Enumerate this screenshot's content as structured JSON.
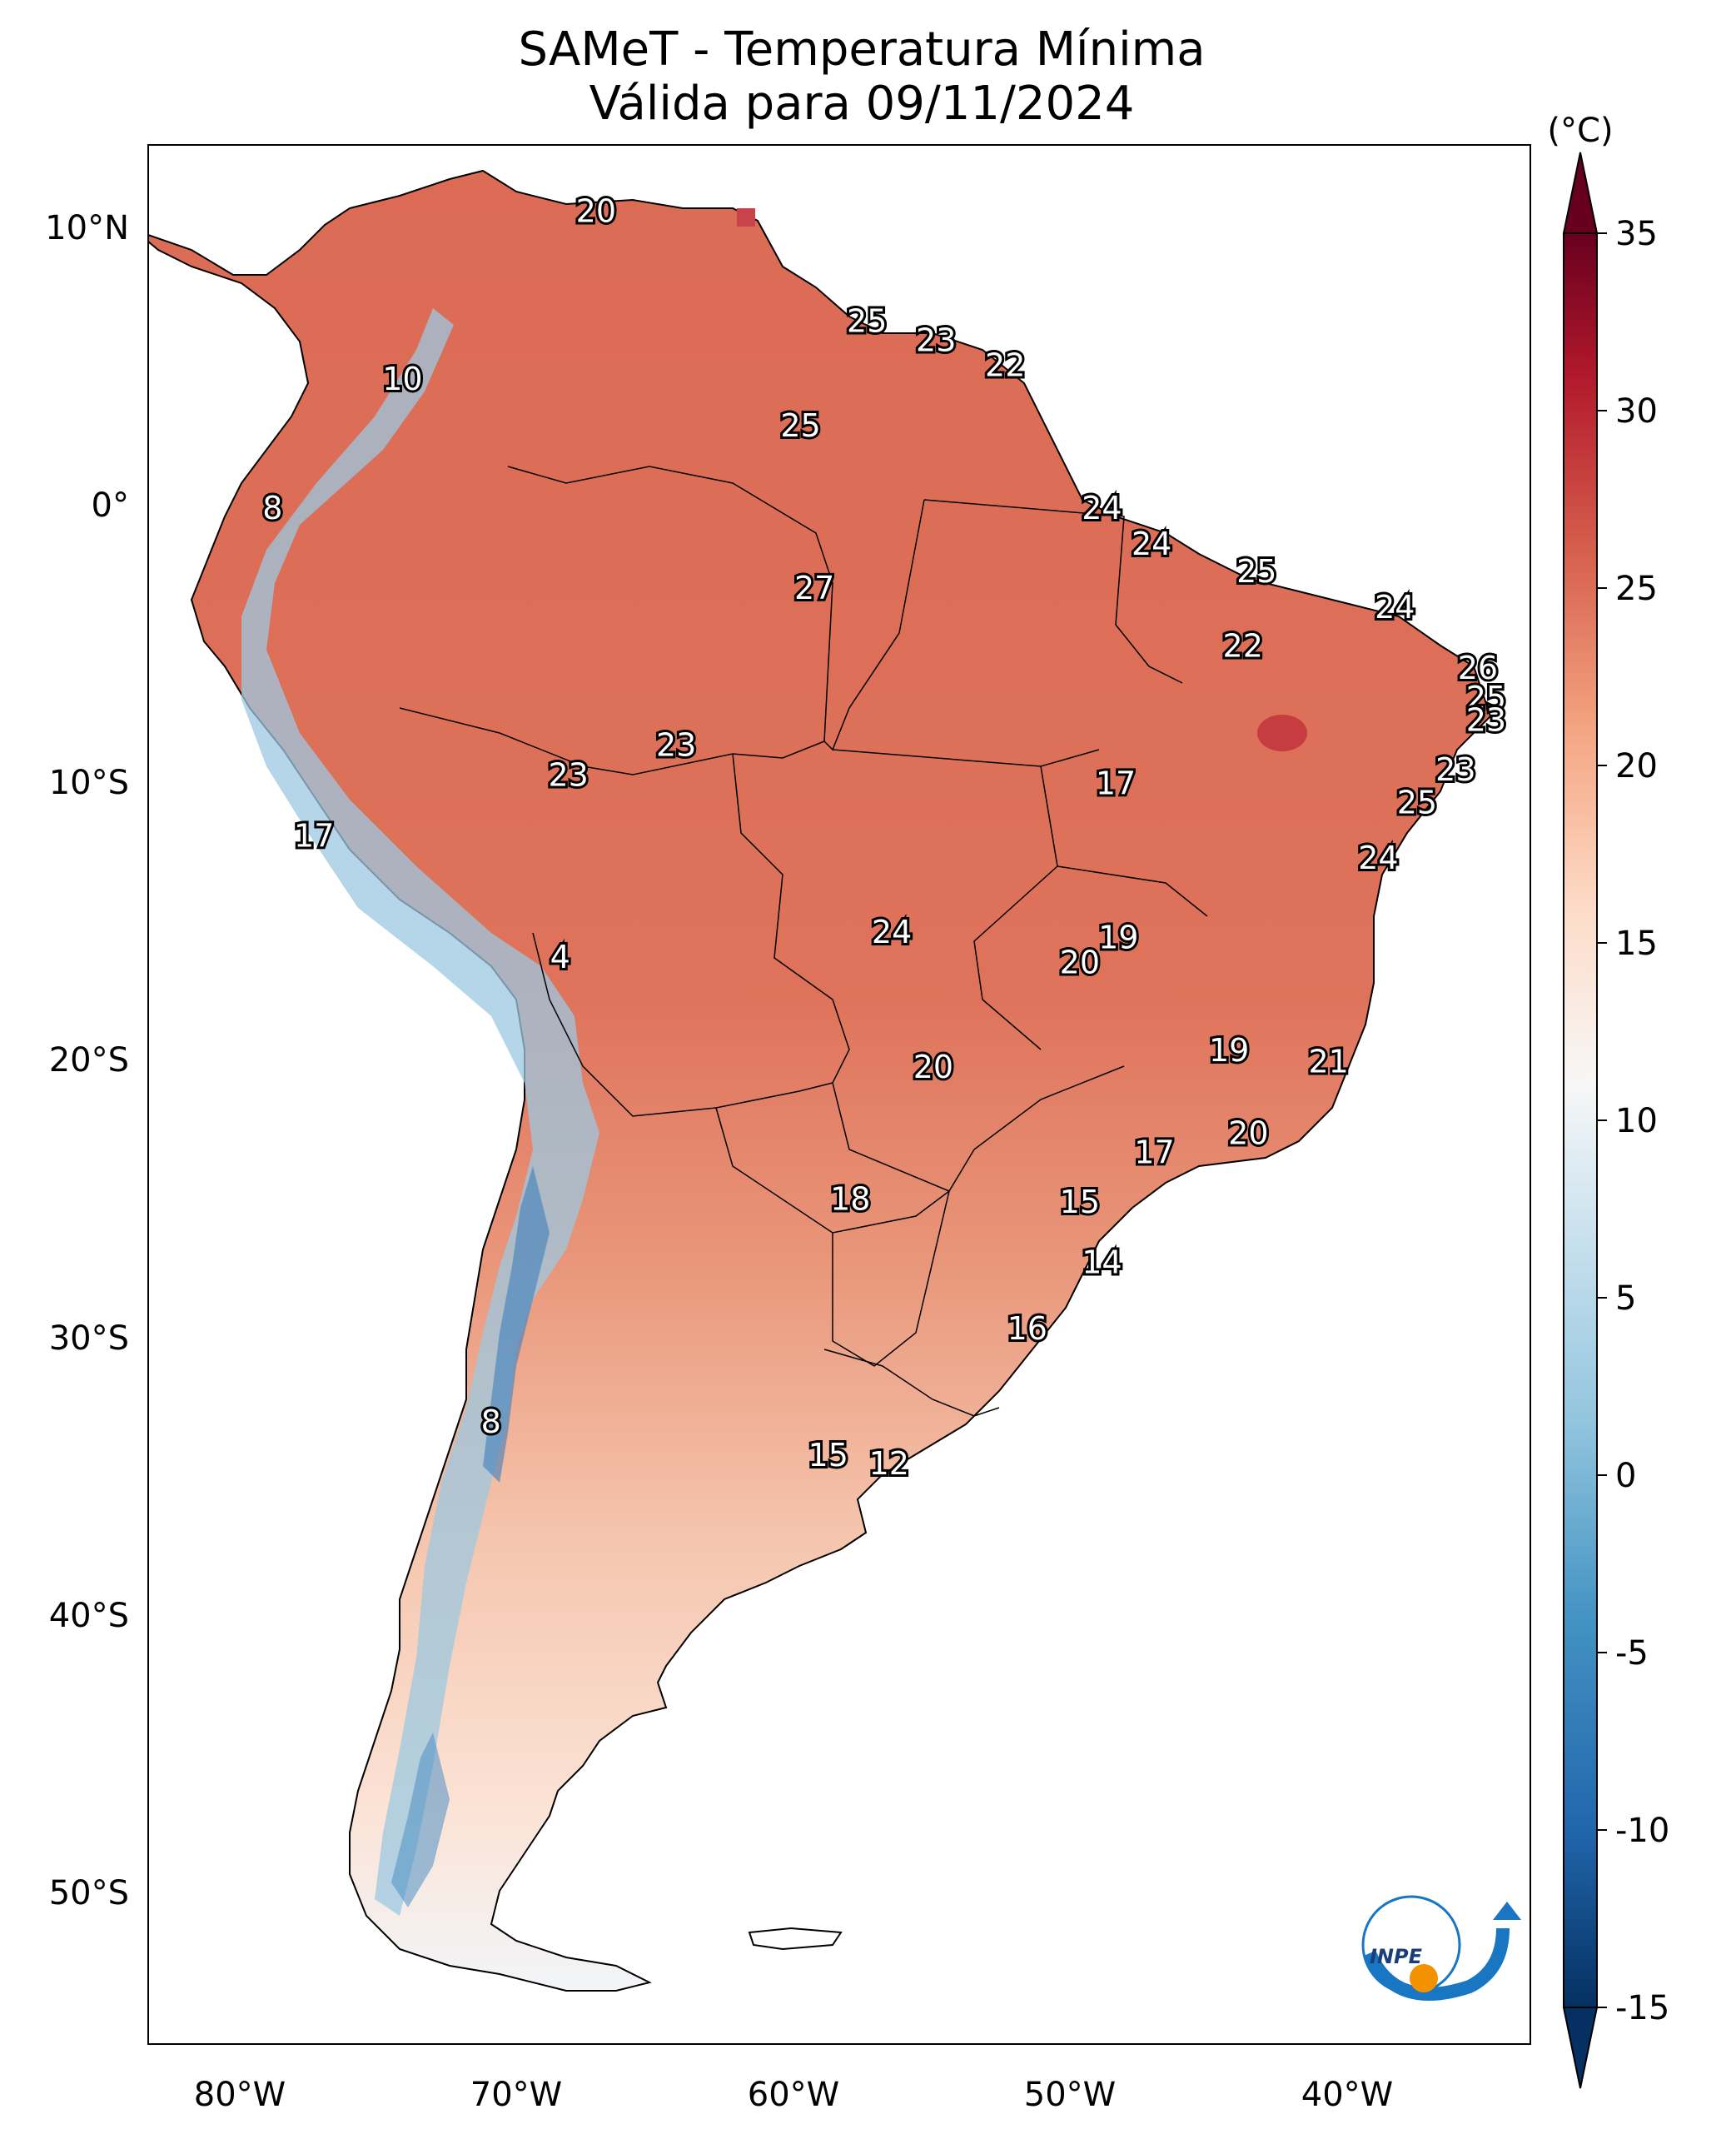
{
  "title": "SAMeT - Temperatura Mínima",
  "subtitle": "Válida para 09/11/2024",
  "colorbar": {
    "unit": "(°C)",
    "ticks": [
      "35",
      "30",
      "25",
      "20",
      "15",
      "10",
      "5",
      "0",
      "-5",
      "-10",
      "-15"
    ],
    "range": [
      -15,
      35
    ],
    "extend": "both",
    "colors": {
      "hot": "#67001f",
      "warm": "#d6604d",
      "mild": "#f4a582",
      "neutral": "#f7f7f7",
      "cool": "#92c5de",
      "cold": "#2166ac",
      "coldest": "#053061"
    }
  },
  "map": {
    "lat_labels": [
      "10°N",
      "0°",
      "10°S",
      "20°S",
      "30°S",
      "40°S",
      "50°S"
    ],
    "lon_labels": [
      "80°W",
      "70°W",
      "60°W",
      "50°W",
      "40°W"
    ],
    "extent": {
      "lon": [
        -83,
        -33
      ],
      "lat": [
        -56,
        13
      ]
    },
    "land_color": "#de6f58",
    "ocean_color": "#ffffff",
    "station_values": [
      {
        "v": "20",
        "lon": -66.8,
        "lat": 10.6
      },
      {
        "v": "25",
        "lon": -57.0,
        "lat": 6.6
      },
      {
        "v": "23",
        "lon": -54.5,
        "lat": 5.9
      },
      {
        "v": "22",
        "lon": -52.0,
        "lat": 5.0
      },
      {
        "v": "10",
        "lon": -73.8,
        "lat": 4.5
      },
      {
        "v": "25",
        "lon": -59.4,
        "lat": 2.8
      },
      {
        "v": "8",
        "lon": -78.5,
        "lat": -0.2
      },
      {
        "v": "24",
        "lon": -48.5,
        "lat": -0.2
      },
      {
        "v": "24",
        "lon": -46.7,
        "lat": -1.5
      },
      {
        "v": "25",
        "lon": -42.9,
        "lat": -2.5
      },
      {
        "v": "27",
        "lon": -58.9,
        "lat": -3.1
      },
      {
        "v": "24",
        "lon": -37.9,
        "lat": -3.8
      },
      {
        "v": "22",
        "lon": -43.4,
        "lat": -5.2
      },
      {
        "v": "26",
        "lon": -34.9,
        "lat": -6.0
      },
      {
        "v": "25",
        "lon": -34.6,
        "lat": -7.1
      },
      {
        "v": "23",
        "lon": -34.6,
        "lat": -7.9
      },
      {
        "v": "23",
        "lon": -63.9,
        "lat": -8.8
      },
      {
        "v": "23",
        "lon": -67.8,
        "lat": -9.9
      },
      {
        "v": "23",
        "lon": -35.7,
        "lat": -9.7
      },
      {
        "v": "17",
        "lon": -48.0,
        "lat": -10.2
      },
      {
        "v": "25",
        "lon": -37.1,
        "lat": -10.9
      },
      {
        "v": "17",
        "lon": -77.0,
        "lat": -12.1
      },
      {
        "v": "24",
        "lon": -38.5,
        "lat": -12.9
      },
      {
        "v": "24",
        "lon": -56.1,
        "lat": -15.6
      },
      {
        "v": "19",
        "lon": -47.9,
        "lat": -15.8
      },
      {
        "v": "4",
        "lon": -68.1,
        "lat": -16.5
      },
      {
        "v": "20",
        "lon": -49.3,
        "lat": -16.7
      },
      {
        "v": "19",
        "lon": -43.9,
        "lat": -19.9
      },
      {
        "v": "21",
        "lon": -40.3,
        "lat": -20.3
      },
      {
        "v": "20",
        "lon": -54.6,
        "lat": -20.5
      },
      {
        "v": "20",
        "lon": -43.2,
        "lat": -22.9
      },
      {
        "v": "17",
        "lon": -46.6,
        "lat": -23.6
      },
      {
        "v": "18",
        "lon": -57.6,
        "lat": -25.3
      },
      {
        "v": "15",
        "lon": -49.3,
        "lat": -25.4
      },
      {
        "v": "14",
        "lon": -48.5,
        "lat": -27.6
      },
      {
        "v": "16",
        "lon": -51.2,
        "lat": -30.0
      },
      {
        "v": "8",
        "lon": -70.6,
        "lat": -33.4
      },
      {
        "v": "15",
        "lon": -58.4,
        "lat": -34.6
      },
      {
        "v": "12",
        "lon": -56.2,
        "lat": -34.9
      }
    ]
  },
  "logo": {
    "text": "INPE"
  }
}
